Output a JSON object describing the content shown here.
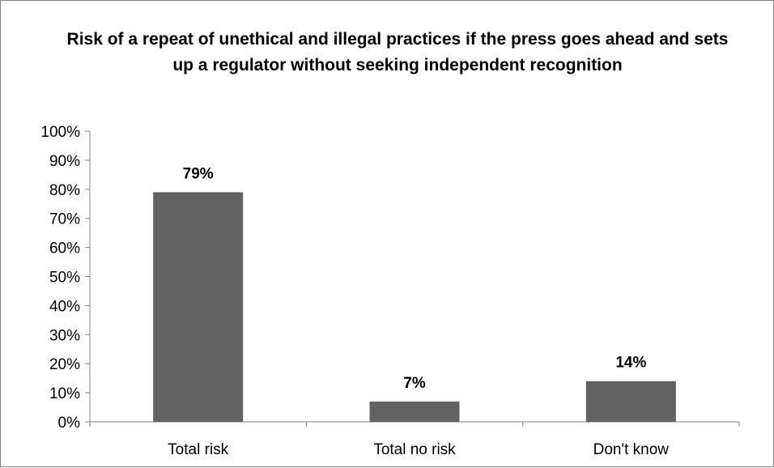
{
  "chart_data": {
    "type": "bar",
    "title": "Risk of a repeat of unethical and illegal practices if the press goes ahead and sets up a regulator without seeking independent recognition",
    "categories": [
      "Total risk",
      "Total no risk",
      "Don't know"
    ],
    "values": [
      79,
      7,
      14
    ],
    "data_labels": [
      "79%",
      "7%",
      "14%"
    ],
    "ylim": [
      0,
      100
    ],
    "y_ticks": [
      0,
      10,
      20,
      30,
      40,
      50,
      60,
      70,
      80,
      90,
      100
    ],
    "y_tick_labels": [
      "0%",
      "10%",
      "20%",
      "30%",
      "40%",
      "50%",
      "60%",
      "70%",
      "80%",
      "90%",
      "100%"
    ],
    "xlabel": "",
    "ylabel": "",
    "grid": false,
    "legend": "none",
    "bar_color": "#626262"
  }
}
